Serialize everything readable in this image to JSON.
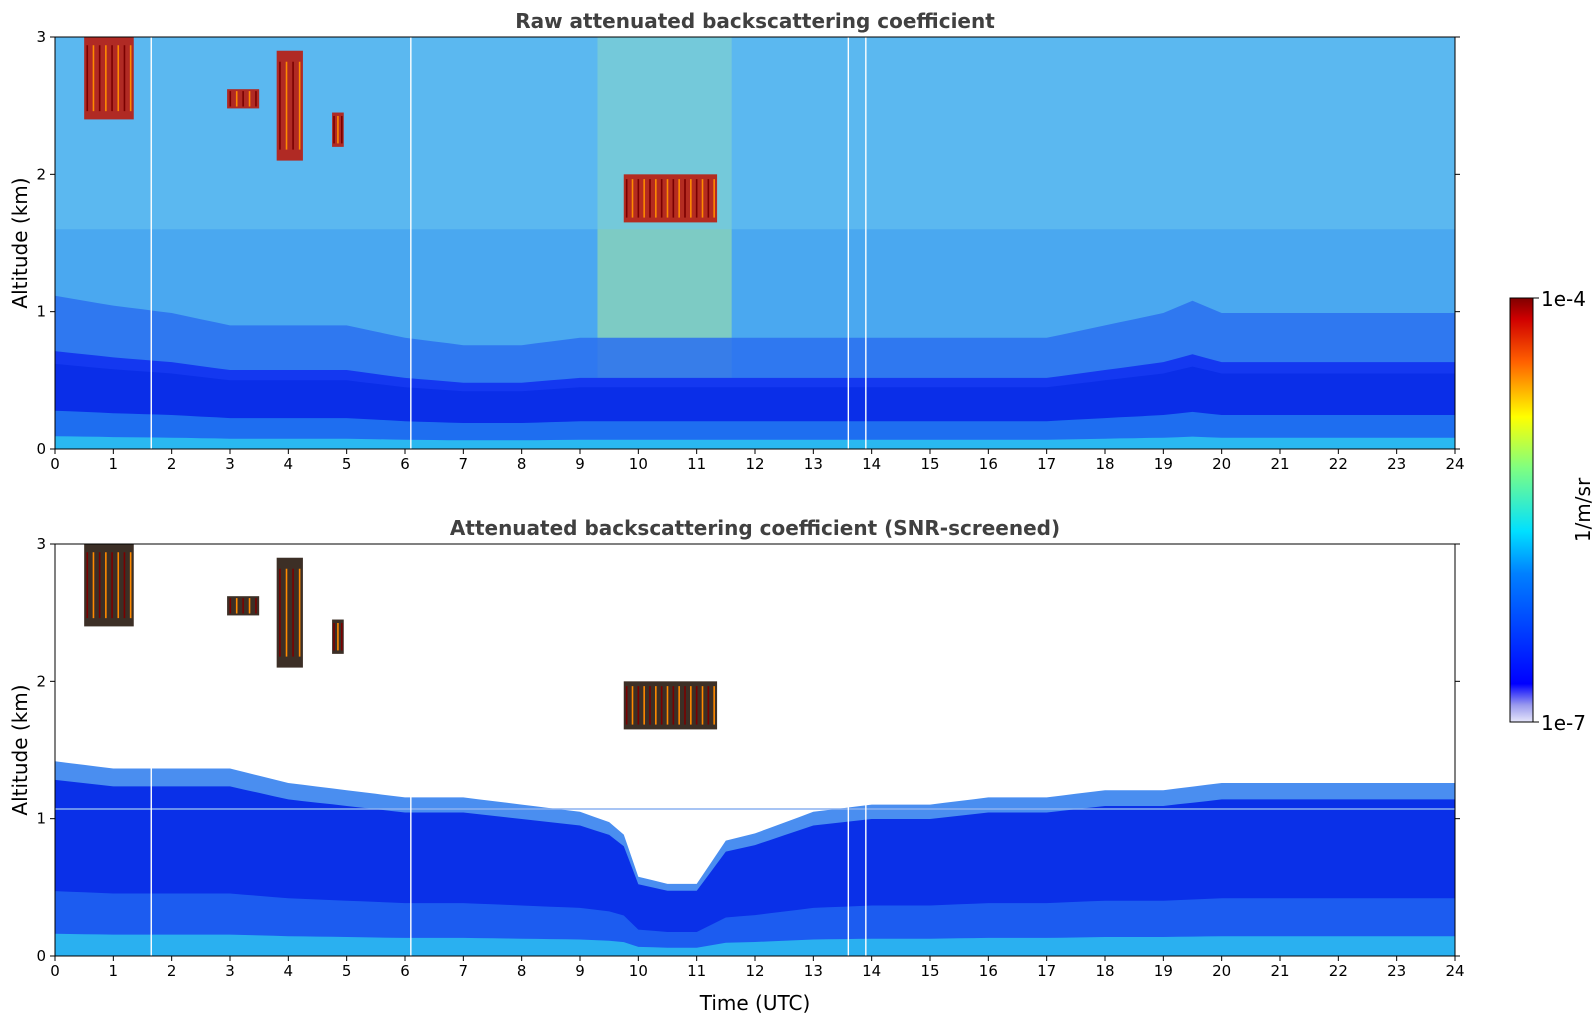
{
  "chart_data": [
    {
      "type": "heatmap",
      "title": "Raw attenuated backscattering coefficient",
      "xlabel": "",
      "ylabel": "Altitude (km)",
      "xlim": [
        0,
        24
      ],
      "ylim": [
        0,
        3
      ],
      "x_ticks": [
        "0",
        "1",
        "2",
        "3",
        "4",
        "5",
        "6",
        "7",
        "8",
        "9",
        "10",
        "11",
        "12",
        "13",
        "14",
        "15",
        "16",
        "17",
        "18",
        "19",
        "20",
        "21",
        "22",
        "23",
        "24"
      ],
      "y_ticks": [
        "0",
        "1",
        "2",
        "3"
      ],
      "screened": false,
      "boundary_layer_top_km": [
        [
          0,
          0.62
        ],
        [
          1,
          0.58
        ],
        [
          2,
          0.55
        ],
        [
          3,
          0.5
        ],
        [
          4,
          0.5
        ],
        [
          5,
          0.5
        ],
        [
          6,
          0.45
        ],
        [
          7,
          0.42
        ],
        [
          8,
          0.42
        ],
        [
          9,
          0.45
        ],
        [
          10,
          0.45
        ],
        [
          11,
          0.45
        ],
        [
          12,
          0.45
        ],
        [
          13,
          0.45
        ],
        [
          14,
          0.45
        ],
        [
          15,
          0.45
        ],
        [
          16,
          0.45
        ],
        [
          17,
          0.45
        ],
        [
          18,
          0.5
        ],
        [
          19,
          0.55
        ],
        [
          19.5,
          0.6
        ],
        [
          20,
          0.55
        ],
        [
          21,
          0.55
        ],
        [
          22,
          0.55
        ],
        [
          23,
          0.55
        ],
        [
          24,
          0.55
        ]
      ],
      "cloud_features": [
        {
          "t_start": 0.5,
          "t_end": 1.35,
          "alt_low_km": 2.4,
          "alt_high_km": 3.0
        },
        {
          "t_start": 2.95,
          "t_end": 3.5,
          "alt_low_km": 2.48,
          "alt_high_km": 2.62
        },
        {
          "t_start": 3.8,
          "t_end": 4.25,
          "alt_low_km": 2.1,
          "alt_high_km": 2.9
        },
        {
          "t_start": 4.75,
          "t_end": 4.95,
          "alt_low_km": 2.2,
          "alt_high_km": 2.45
        },
        {
          "t_start": 9.75,
          "t_end": 11.35,
          "alt_low_km": 1.65,
          "alt_high_km": 2.0
        }
      ],
      "missing_data_times": [
        1.65,
        6.1,
        13.6,
        13.9
      ]
    },
    {
      "type": "heatmap",
      "title": "Attenuated backscattering coefficient (SNR-screened)",
      "xlabel": "Time (UTC)",
      "ylabel": "Altitude (km)",
      "xlim": [
        0,
        24
      ],
      "ylim": [
        0,
        3
      ],
      "x_ticks": [
        "0",
        "1",
        "2",
        "3",
        "4",
        "5",
        "6",
        "7",
        "8",
        "9",
        "10",
        "11",
        "12",
        "13",
        "14",
        "15",
        "16",
        "17",
        "18",
        "19",
        "20",
        "21",
        "22",
        "23",
        "24"
      ],
      "y_ticks": [
        "0",
        "1",
        "2",
        "3"
      ],
      "screened": true,
      "signal_top_km": [
        [
          0,
          1.35
        ],
        [
          1,
          1.3
        ],
        [
          2,
          1.3
        ],
        [
          3,
          1.3
        ],
        [
          4,
          1.2
        ],
        [
          5,
          1.15
        ],
        [
          6,
          1.1
        ],
        [
          7,
          1.1
        ],
        [
          8,
          1.05
        ],
        [
          9,
          1.0
        ],
        [
          9.7,
          0.9
        ],
        [
          10,
          0.55
        ],
        [
          10.5,
          0.5
        ],
        [
          11,
          0.5
        ],
        [
          11.5,
          0.8
        ],
        [
          12,
          0.85
        ],
        [
          13,
          1.0
        ],
        [
          14,
          1.05
        ],
        [
          15,
          1.05
        ],
        [
          16,
          1.1
        ],
        [
          17,
          1.1
        ],
        [
          18,
          1.15
        ],
        [
          19,
          1.15
        ],
        [
          20,
          1.2
        ],
        [
          21,
          1.2
        ],
        [
          22,
          1.2
        ],
        [
          23,
          1.2
        ],
        [
          24,
          1.2
        ]
      ],
      "cloud_features": [
        {
          "t_start": 0.5,
          "t_end": 1.35,
          "alt_low_km": 2.4,
          "alt_high_km": 3.0
        },
        {
          "t_start": 2.95,
          "t_end": 3.5,
          "alt_low_km": 2.48,
          "alt_high_km": 2.62
        },
        {
          "t_start": 3.8,
          "t_end": 4.25,
          "alt_low_km": 2.1,
          "alt_high_km": 2.9
        },
        {
          "t_start": 4.75,
          "t_end": 4.95,
          "alt_low_km": 2.2,
          "alt_high_km": 2.45
        },
        {
          "t_start": 9.75,
          "t_end": 11.35,
          "alt_low_km": 1.65,
          "alt_high_km": 2.0
        }
      ],
      "missing_data_times": [
        1.65,
        6.1,
        13.6,
        13.9
      ]
    }
  ],
  "colorbar": {
    "label": "1/m/sr",
    "min_label": "1e-7",
    "max_label": "1e-4",
    "scale": "log",
    "colormap": "jet"
  }
}
